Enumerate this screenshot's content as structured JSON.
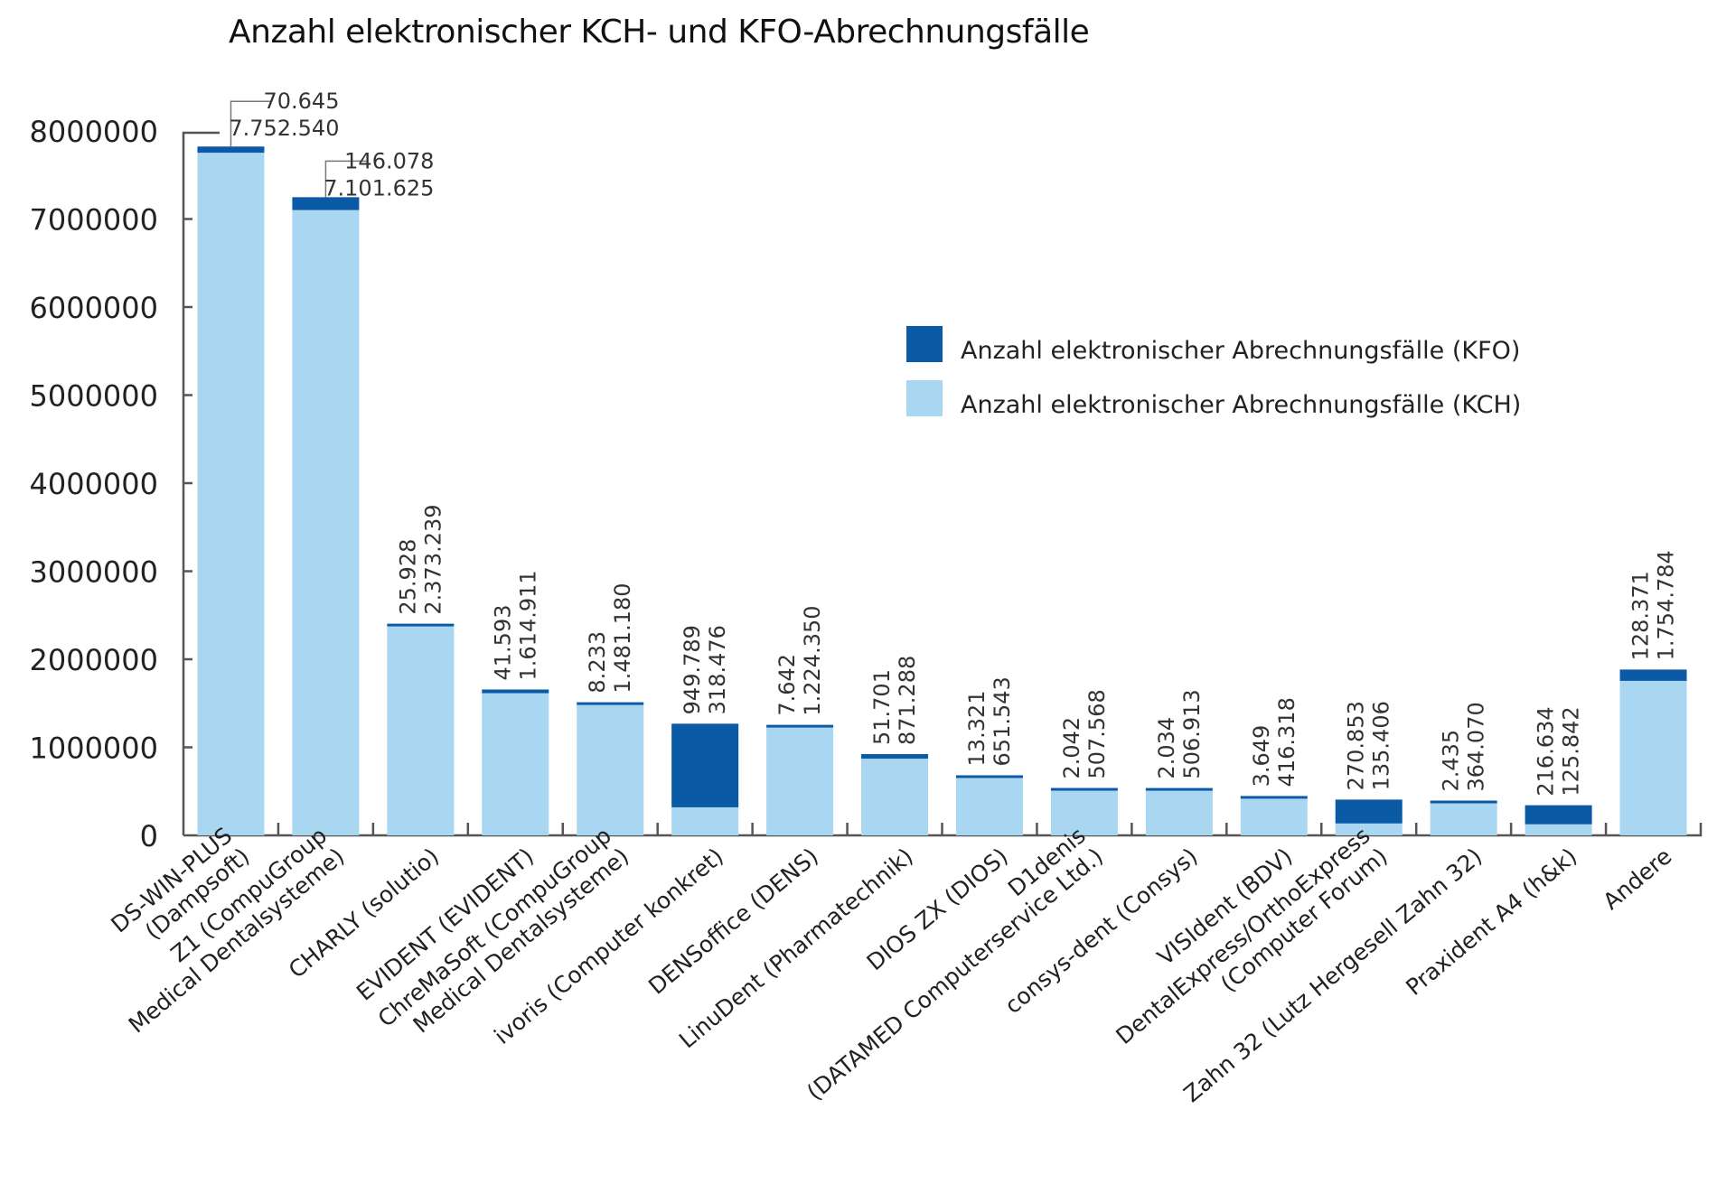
{
  "chart_data": {
    "type": "bar",
    "stacked": true,
    "title": "Anzahl elektronischer KCH- und KFO-Abrechnungsfälle",
    "xlabel": "",
    "ylabel": "",
    "ylim": [
      0,
      8000000
    ],
    "yticks": [
      0,
      1000000,
      2000000,
      3000000,
      4000000,
      5000000,
      6000000,
      7000000,
      8000000
    ],
    "ytick_labels": [
      "0",
      "1000000",
      "2000000",
      "3000000",
      "4000000",
      "5000000",
      "6000000",
      "7000000",
      "8000000"
    ],
    "grid": false,
    "legend_position": "right",
    "categories": [
      [
        "DS-WIN-PLUS",
        "(Dampsoft)"
      ],
      [
        "Z1 (CompuGroup",
        "Medical Dentalsysteme)"
      ],
      [
        "CHARLY (solutio)"
      ],
      [
        "EVIDENT (EVIDENT)"
      ],
      [
        "ChreMaSoft (CompuGroup",
        "Medical Dentalsysteme)"
      ],
      [
        "ivoris (Computer konkret)"
      ],
      [
        "DENSoffice (DENS)"
      ],
      [
        "LinuDent (Pharmatechnik)"
      ],
      [
        "DIOS ZX (DIOS)"
      ],
      [
        "D1denis",
        "(DATAMED Computerservice Ltd.)"
      ],
      [
        "consys-dent (Consys)"
      ],
      [
        "VISIdent (BDV)"
      ],
      [
        "DentalExpress/OrthoExpress",
        "(Computer Forum)"
      ],
      [
        "Zahn 32 (Lutz Hergesell Zahn 32)"
      ],
      [
        "Praxident A4 (h&k)"
      ],
      [
        "Andere"
      ]
    ],
    "series": [
      {
        "name": "Anzahl elektronischer Abrechnungsfälle (KCH)",
        "color": "#a9d6f1",
        "position": "bottom",
        "values": [
          7752540,
          7101625,
          2373239,
          1614911,
          1481180,
          318476,
          1224350,
          871288,
          651543,
          507568,
          506913,
          416318,
          135406,
          364070,
          125842,
          1754784
        ],
        "labels": [
          "7.752.540",
          "7.101.625",
          "2.373.239",
          "1.614.911",
          "1.481.180",
          "318.476",
          "1.224.350",
          "871.288",
          "651.543",
          "507.568",
          "506.913",
          "416.318",
          "135.406",
          "364.070",
          "125.842",
          "1.754.784"
        ]
      },
      {
        "name": "Anzahl elektronischer Abrechnungsfälle (KFO)",
        "color": "#0b5aa6",
        "position": "top",
        "values": [
          70645,
          146078,
          25928,
          41593,
          8233,
          949789,
          7642,
          51701,
          13321,
          2042,
          2034,
          3649,
          270853,
          2435,
          216634,
          128371
        ],
        "labels": [
          "70.645",
          "146.078",
          "25.928",
          "41.593",
          "8.233",
          "949.789",
          "7.642",
          "51.701",
          "13.321",
          "2.042",
          "2.034",
          "3.649",
          "270.853",
          "2.435",
          "216.634",
          "128.371"
        ]
      }
    ],
    "legend": [
      {
        "label": "Anzahl elektronischer Abrechnungsfälle (KFO)",
        "color": "#0b5aa6"
      },
      {
        "label": "Anzahl elektronischer Abrechnungsfälle (KCH)",
        "color": "#a9d6f1"
      }
    ]
  }
}
